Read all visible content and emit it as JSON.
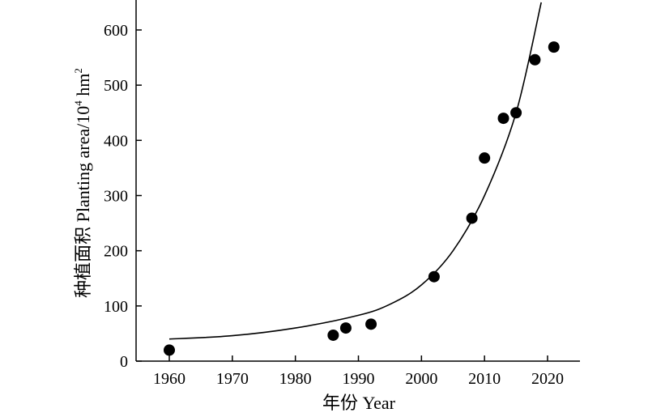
{
  "chart_data": {
    "type": "scatter",
    "title": "",
    "xlabel": "年份 Year",
    "ylabel_main": "种植面积 Planting area/10",
    "ylabel_exp": "4",
    "ylabel_unit": " hm",
    "ylabel_unit_exp": "2",
    "xlim": [
      1954,
      2025
    ],
    "ylim": [
      0,
      650
    ],
    "xticks": [
      1960,
      1970,
      1980,
      1990,
      2000,
      2010,
      2020
    ],
    "yticks": [
      0,
      100,
      200,
      300,
      400,
      500,
      600
    ],
    "grid": false,
    "legend": "none",
    "point_color": "#000000",
    "line_color": "#000000",
    "series": [
      {
        "kind": "points",
        "x": [
          1960,
          1986,
          1988,
          1992,
          2002,
          2008,
          2010,
          2013,
          2015,
          2018,
          2021
        ],
        "y": [
          20,
          47,
          60,
          67,
          153,
          259,
          368,
          440,
          450,
          546,
          569
        ]
      },
      {
        "kind": "fit-curve",
        "x": [
          1960,
          1970,
          1980,
          1990,
          1995,
          2000,
          2005,
          2010,
          2015,
          2019
        ],
        "y": [
          40,
          46,
          60,
          83,
          103,
          138,
          200,
          300,
          450,
          650
        ]
      }
    ]
  }
}
